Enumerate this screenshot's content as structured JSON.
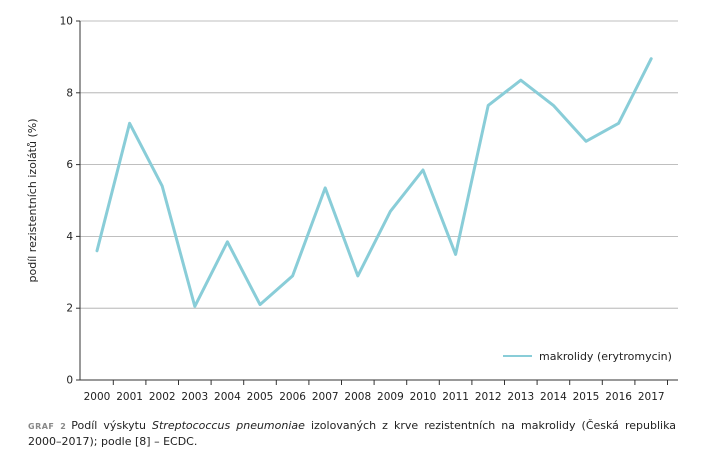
{
  "chart_data": {
    "type": "line",
    "categories": [
      "2000",
      "2001",
      "2002",
      "2003",
      "2004",
      "2005",
      "2006",
      "2007",
      "2008",
      "2009",
      "2010",
      "2011",
      "2012",
      "2013",
      "2014",
      "2015",
      "2016",
      "2017"
    ],
    "series": [
      {
        "name": "makrolidy (erytromycin)",
        "values": [
          3.6,
          7.15,
          5.4,
          2.05,
          3.85,
          2.1,
          2.9,
          5.35,
          2.9,
          4.7,
          5.85,
          3.5,
          7.65,
          8.35,
          7.65,
          6.65,
          7.15,
          8.95
        ],
        "color": "#89CDD8"
      }
    ],
    "ylabel": "podíl rezistentních izolátů (%)",
    "xlabel": "",
    "ylim": [
      0,
      10
    ],
    "yticks": [
      0,
      2,
      4,
      6,
      8,
      10
    ],
    "grid": true,
    "legend_position": "bottom-right"
  },
  "caption": {
    "label": "GRAF 2",
    "text_before": "Podíl výskytu ",
    "species": "Streptococcus pneumoniae",
    "text_after": " izolovaných z krve rezistentních na makrolidy (Česká republika 2000–2017); podle [8] – ECDC."
  },
  "colors": {
    "line": "#89CDD8",
    "grid": "#aaaaaa",
    "axis": "#333333"
  }
}
